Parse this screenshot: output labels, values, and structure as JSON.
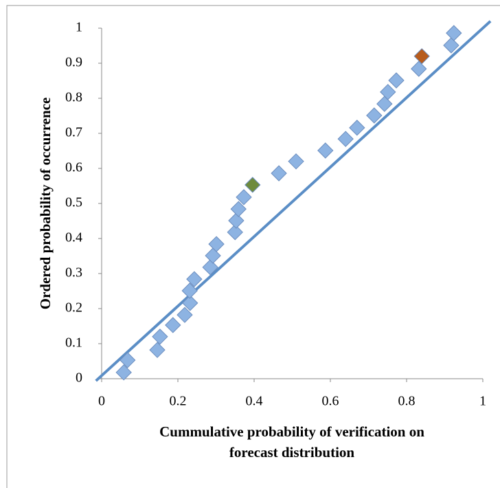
{
  "chart_data": {
    "type": "scatter",
    "x_label": [
      "Cummulative probability of verification on",
      "forecast distribution"
    ],
    "y_label": "Ordered probability of occurrence",
    "xlim": [
      0,
      1
    ],
    "ylim": [
      0,
      1
    ],
    "xticks": [
      0,
      0.2,
      0.4,
      0.6,
      0.8,
      1
    ],
    "yticks": [
      0,
      0.1,
      0.2,
      0.3,
      0.4,
      0.5,
      0.6,
      0.7,
      0.8,
      0.9,
      1
    ],
    "grid": false,
    "series": [
      {
        "color": "#8db3e2",
        "x": [
          0.058,
          0.068,
          0.146,
          0.153,
          0.187,
          0.218,
          0.232,
          0.231,
          0.243,
          0.285,
          0.292,
          0.301,
          0.35,
          0.353,
          0.359,
          0.373,
          0.465,
          0.51,
          0.587,
          0.64,
          0.67,
          0.715,
          0.742,
          0.751,
          0.773,
          0.832,
          0.917,
          0.924
        ],
        "values": [
          0.018,
          0.053,
          0.082,
          0.12,
          0.153,
          0.182,
          0.216,
          0.251,
          0.284,
          0.318,
          0.351,
          0.384,
          0.418,
          0.451,
          0.484,
          0.518,
          0.586,
          0.62,
          0.651,
          0.684,
          0.716,
          0.751,
          0.784,
          0.818,
          0.851,
          0.884,
          0.951,
          0.986
        ]
      },
      {
        "color": "#6e8b3d",
        "x": [
          0.396
        ],
        "values": [
          0.553
        ]
      },
      {
        "color": "#b85c1c",
        "x": [
          0.84
        ],
        "values": [
          0.92
        ]
      },
      {
        "type": "line",
        "color": "#5b8ec6",
        "x": [
          -0.015,
          1.02
        ],
        "values": [
          -0.006,
          1.02
        ]
      }
    ]
  }
}
